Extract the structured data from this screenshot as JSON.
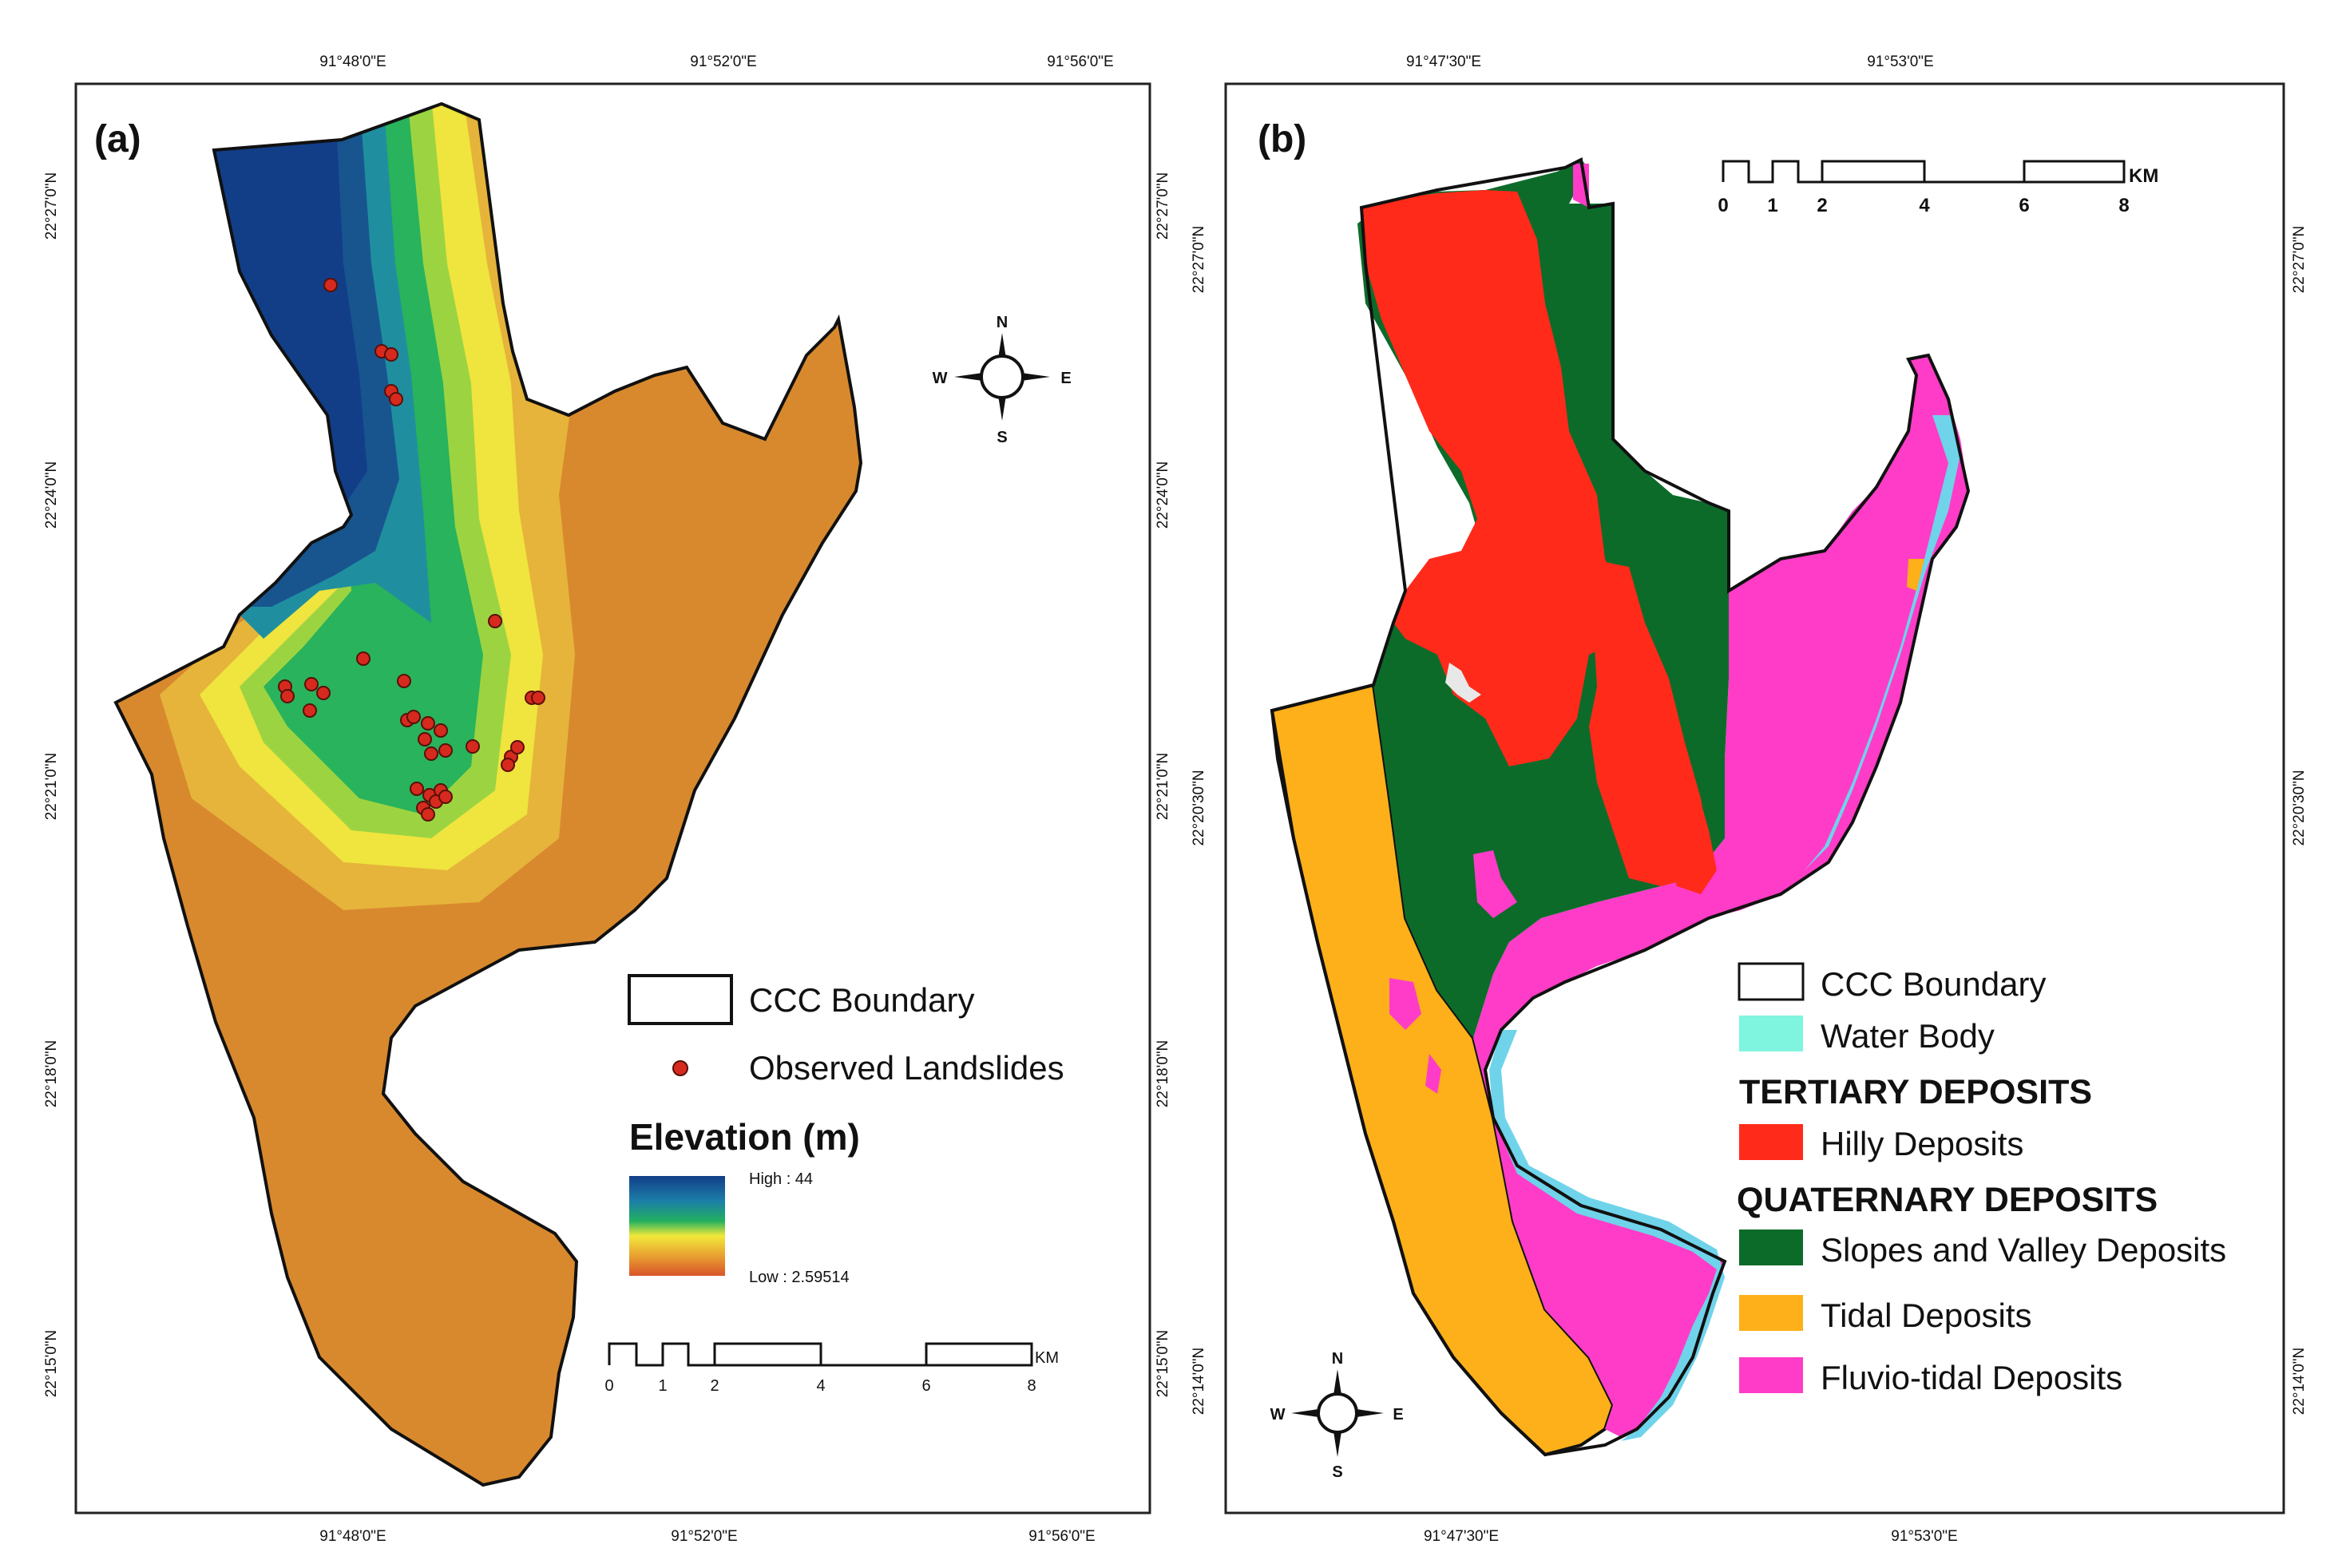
{
  "panel_a": {
    "label": "(a)",
    "top_ticks": [
      "91°48'0\"E",
      "91°52'0\"E",
      "91°56'0\"E"
    ],
    "bottom_ticks": [
      "91°48'0\"E",
      "91°52'0\"E",
      "91°56'0\"E"
    ],
    "left_ticks": [
      "22°27'0\"N",
      "22°24'0\"N",
      "22°21'0\"N",
      "22°18'0\"N",
      "22°15'0\"N"
    ],
    "right_ticks": [
      "22°27'0\"N",
      "22°24'0\"N",
      "22°21'0\"N",
      "22°18'0\"N",
      "22°15'0\"N"
    ],
    "legend": {
      "boundary": "CCC Boundary",
      "landslides": "Observed Landslides",
      "elevation_title": "Elevation (m)",
      "high": "High : 44",
      "low": "Low : 2.59514"
    },
    "scale": {
      "unit": "KM",
      "labels": [
        "0",
        "1",
        "2",
        "4",
        "6",
        "8"
      ]
    },
    "compass": {
      "n": "N",
      "s": "S",
      "e": "E",
      "w": "W"
    }
  },
  "panel_b": {
    "label": "(b)",
    "top_ticks": [
      "91°47'30\"E",
      "91°53'0\"E"
    ],
    "bottom_ticks": [
      "91°47'30\"E",
      "91°53'0\"E"
    ],
    "left_ticks": [
      "22°27'0\"N",
      "22°24'0\"N",
      "22°21'0\"N",
      "22°18'0\"N",
      "22°15'0\"N",
      "22°14'0\"N"
    ],
    "inner_left_ticks": [
      "22°27'0\"N",
      "22°20'30\"N",
      "22°14'0\"N"
    ],
    "right_ticks": [
      "22°27'0\"N",
      "22°20'30\"N",
      "22°14'0\"N"
    ],
    "legend": {
      "boundary": "CCC Boundary",
      "water": "Water Body",
      "tertiary": "TERTIARY DEPOSITS",
      "hilly": "Hilly Deposits",
      "quaternary": "QUATERNARY DEPOSITS",
      "slopes": "Slopes and Valley Deposits",
      "tidal": "Tidal Deposits",
      "fluvio": "Fluvio-tidal Deposits"
    },
    "scale": {
      "unit": "KM",
      "labels": [
        "0",
        "1",
        "2",
        "4",
        "6",
        "8"
      ]
    },
    "compass": {
      "n": "N",
      "s": "S",
      "e": "E",
      "w": "W"
    }
  },
  "colors": {
    "water": "#7FF5E0",
    "hilly": "#FF2A1A",
    "slopes": "#0D6B2A",
    "tidal": "#FFB400",
    "fluvio": "#FF3CC8",
    "dem_high": "#123E88",
    "dem_low": "#D8892E"
  }
}
